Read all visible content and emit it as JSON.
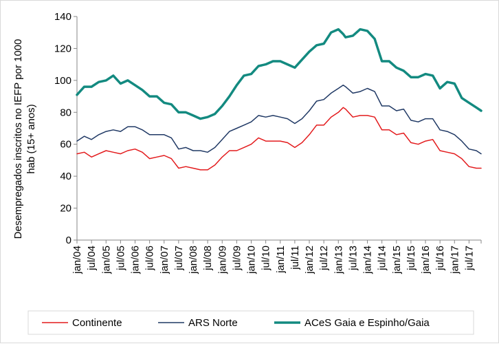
{
  "chart_data": {
    "type": "line",
    "ylabel_lines": [
      "Desempregados inscritos no IEFP por 1000",
      "hab (15+ anos)"
    ],
    "ylim": [
      0,
      140
    ],
    "yticks": [
      0,
      20,
      40,
      60,
      80,
      100,
      120,
      140
    ],
    "grid": false,
    "legend_position": "bottom",
    "x_start": "2004-01",
    "x_end": "2017-12",
    "xtick_labels": [
      "jan/04",
      "jul/04",
      "jan/05",
      "jul/05",
      "jan/06",
      "jul/06",
      "jan/07",
      "jul/07",
      "jan/08",
      "jul/08",
      "jan/09",
      "jul/09",
      "jan/10",
      "jul/10",
      "jan/11",
      "jul/11",
      "jan/12",
      "jul/12",
      "jan/13",
      "jul/13",
      "jan/14",
      "jul/14",
      "jan/15",
      "jul/15",
      "jan/16",
      "jul/16",
      "jan/17",
      "jul/17"
    ],
    "series": [
      {
        "name": "Continente",
        "color": "#e31a1c",
        "points": [
          [
            "2004-01",
            54
          ],
          [
            "2004-04",
            55
          ],
          [
            "2004-07",
            52
          ],
          [
            "2004-10",
            54
          ],
          [
            "2005-01",
            56
          ],
          [
            "2005-04",
            55
          ],
          [
            "2005-07",
            54
          ],
          [
            "2005-10",
            56
          ],
          [
            "2006-01",
            57
          ],
          [
            "2006-04",
            55
          ],
          [
            "2006-07",
            51
          ],
          [
            "2006-10",
            52
          ],
          [
            "2007-01",
            53
          ],
          [
            "2007-04",
            51
          ],
          [
            "2007-07",
            45
          ],
          [
            "2007-10",
            46
          ],
          [
            "2008-01",
            45
          ],
          [
            "2008-04",
            44
          ],
          [
            "2008-07",
            44
          ],
          [
            "2008-10",
            47
          ],
          [
            "2009-01",
            52
          ],
          [
            "2009-04",
            56
          ],
          [
            "2009-07",
            56
          ],
          [
            "2009-10",
            58
          ],
          [
            "2010-01",
            60
          ],
          [
            "2010-04",
            64
          ],
          [
            "2010-07",
            62
          ],
          [
            "2010-10",
            62
          ],
          [
            "2011-01",
            62
          ],
          [
            "2011-04",
            61
          ],
          [
            "2011-07",
            58
          ],
          [
            "2011-10",
            61
          ],
          [
            "2012-01",
            66
          ],
          [
            "2012-04",
            72
          ],
          [
            "2012-07",
            72
          ],
          [
            "2012-10",
            77
          ],
          [
            "2013-01",
            80
          ],
          [
            "2013-03",
            83
          ],
          [
            "2013-04",
            82
          ],
          [
            "2013-07",
            77
          ],
          [
            "2013-10",
            78
          ],
          [
            "2014-01",
            78
          ],
          [
            "2014-04",
            77
          ],
          [
            "2014-07",
            69
          ],
          [
            "2014-10",
            69
          ],
          [
            "2015-01",
            66
          ],
          [
            "2015-04",
            67
          ],
          [
            "2015-07",
            61
          ],
          [
            "2015-10",
            60
          ],
          [
            "2016-01",
            62
          ],
          [
            "2016-04",
            63
          ],
          [
            "2016-07",
            56
          ],
          [
            "2016-10",
            55
          ],
          [
            "2017-01",
            54
          ],
          [
            "2017-04",
            51
          ],
          [
            "2017-07",
            46
          ],
          [
            "2017-10",
            45
          ],
          [
            "2017-12",
            45
          ]
        ]
      },
      {
        "name": "ARS Norte",
        "color": "#1f3864",
        "points": [
          [
            "2004-01",
            62
          ],
          [
            "2004-04",
            65
          ],
          [
            "2004-07",
            63
          ],
          [
            "2004-10",
            66
          ],
          [
            "2005-01",
            68
          ],
          [
            "2005-04",
            69
          ],
          [
            "2005-07",
            68
          ],
          [
            "2005-10",
            71
          ],
          [
            "2006-01",
            71
          ],
          [
            "2006-04",
            69
          ],
          [
            "2006-07",
            66
          ],
          [
            "2006-10",
            66
          ],
          [
            "2007-01",
            66
          ],
          [
            "2007-04",
            64
          ],
          [
            "2007-07",
            57
          ],
          [
            "2007-10",
            58
          ],
          [
            "2008-01",
            56
          ],
          [
            "2008-04",
            56
          ],
          [
            "2008-07",
            55
          ],
          [
            "2008-10",
            58
          ],
          [
            "2009-01",
            63
          ],
          [
            "2009-04",
            68
          ],
          [
            "2009-07",
            70
          ],
          [
            "2009-10",
            72
          ],
          [
            "2010-01",
            74
          ],
          [
            "2010-04",
            78
          ],
          [
            "2010-07",
            77
          ],
          [
            "2010-10",
            78
          ],
          [
            "2011-01",
            77
          ],
          [
            "2011-04",
            76
          ],
          [
            "2011-07",
            73
          ],
          [
            "2011-10",
            76
          ],
          [
            "2012-01",
            81
          ],
          [
            "2012-04",
            87
          ],
          [
            "2012-07",
            88
          ],
          [
            "2012-10",
            92
          ],
          [
            "2013-01",
            95
          ],
          [
            "2013-03",
            97
          ],
          [
            "2013-04",
            96
          ],
          [
            "2013-07",
            92
          ],
          [
            "2013-10",
            93
          ],
          [
            "2014-01",
            95
          ],
          [
            "2014-04",
            93
          ],
          [
            "2014-07",
            84
          ],
          [
            "2014-10",
            84
          ],
          [
            "2015-01",
            81
          ],
          [
            "2015-04",
            82
          ],
          [
            "2015-07",
            75
          ],
          [
            "2015-10",
            74
          ],
          [
            "2016-01",
            76
          ],
          [
            "2016-04",
            76
          ],
          [
            "2016-07",
            69
          ],
          [
            "2016-10",
            68
          ],
          [
            "2017-01",
            66
          ],
          [
            "2017-04",
            62
          ],
          [
            "2017-07",
            57
          ],
          [
            "2017-10",
            56
          ],
          [
            "2017-12",
            54
          ]
        ]
      },
      {
        "name": "ACeS Gaia e Espinho/Gaia",
        "color": "#138a80",
        "points": [
          [
            "2004-01",
            91
          ],
          [
            "2004-04",
            96
          ],
          [
            "2004-07",
            96
          ],
          [
            "2004-10",
            99
          ],
          [
            "2005-01",
            100
          ],
          [
            "2005-04",
            103
          ],
          [
            "2005-07",
            98
          ],
          [
            "2005-10",
            100
          ],
          [
            "2006-01",
            97
          ],
          [
            "2006-04",
            94
          ],
          [
            "2006-07",
            90
          ],
          [
            "2006-10",
            90
          ],
          [
            "2007-01",
            86
          ],
          [
            "2007-04",
            85
          ],
          [
            "2007-07",
            80
          ],
          [
            "2007-10",
            80
          ],
          [
            "2008-01",
            78
          ],
          [
            "2008-04",
            76
          ],
          [
            "2008-07",
            77
          ],
          [
            "2008-10",
            79
          ],
          [
            "2009-01",
            84
          ],
          [
            "2009-04",
            90
          ],
          [
            "2009-07",
            97
          ],
          [
            "2009-10",
            103
          ],
          [
            "2010-01",
            104
          ],
          [
            "2010-04",
            109
          ],
          [
            "2010-07",
            110
          ],
          [
            "2010-10",
            112
          ],
          [
            "2011-01",
            112
          ],
          [
            "2011-04",
            110
          ],
          [
            "2011-07",
            108
          ],
          [
            "2011-10",
            113
          ],
          [
            "2012-01",
            118
          ],
          [
            "2012-04",
            122
          ],
          [
            "2012-07",
            123
          ],
          [
            "2012-10",
            130
          ],
          [
            "2013-01",
            132
          ],
          [
            "2013-03",
            129
          ],
          [
            "2013-04",
            127
          ],
          [
            "2013-07",
            128
          ],
          [
            "2013-10",
            132
          ],
          [
            "2014-01",
            131
          ],
          [
            "2014-04",
            126
          ],
          [
            "2014-07",
            112
          ],
          [
            "2014-10",
            112
          ],
          [
            "2015-01",
            108
          ],
          [
            "2015-04",
            106
          ],
          [
            "2015-07",
            102
          ],
          [
            "2015-10",
            102
          ],
          [
            "2016-01",
            104
          ],
          [
            "2016-04",
            103
          ],
          [
            "2016-07",
            95
          ],
          [
            "2016-10",
            99
          ],
          [
            "2017-01",
            98
          ],
          [
            "2017-04",
            89
          ],
          [
            "2017-07",
            86
          ],
          [
            "2017-10",
            83
          ],
          [
            "2017-12",
            81
          ]
        ]
      }
    ]
  }
}
